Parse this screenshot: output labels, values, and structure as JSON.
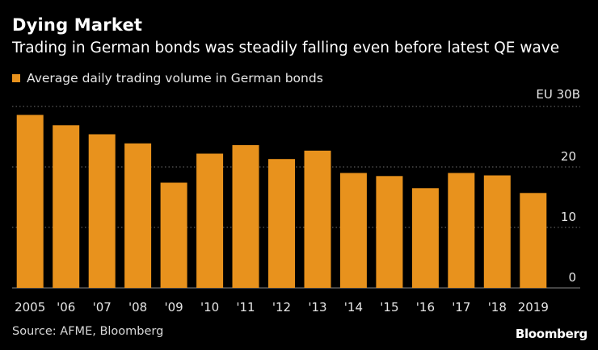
{
  "title": "Dying Market",
  "subtitle": "Trading in German bonds was steadily falling even before latest QE wave",
  "unit_label": "EU 30B",
  "source": "Source: AFME, Bloomberg",
  "brand": "Bloomberg",
  "colors": {
    "bar": "#E8921D",
    "background": "#000000",
    "grid": "#6e6e6e",
    "text": "#FFFFFF"
  },
  "chart_data": {
    "type": "bar",
    "title": "Dying Market",
    "subtitle": "Trading in German bonds was steadily falling even before latest QE wave",
    "legend": [
      "Average daily trading volume in German bonds"
    ],
    "legend_position": "top-left",
    "xlabel": "",
    "ylabel": "EU 30B",
    "categories": [
      "2005",
      "'06",
      "'07",
      "'08",
      "'09",
      "'10",
      "'11",
      "'12",
      "'13",
      "'14",
      "'15",
      "'16",
      "'17",
      "'18",
      "2019"
    ],
    "values": [
      28.6,
      26.9,
      25.4,
      23.9,
      17.4,
      22.2,
      23.6,
      21.3,
      22.7,
      19.0,
      18.5,
      16.5,
      19.0,
      18.6,
      15.7
    ],
    "ylim": [
      0,
      30
    ],
    "yticks": [
      0,
      10,
      20
    ],
    "ytick_labels": [
      "0",
      "10",
      "20"
    ],
    "grid": true,
    "grid_style": "dotted-horizontal"
  }
}
